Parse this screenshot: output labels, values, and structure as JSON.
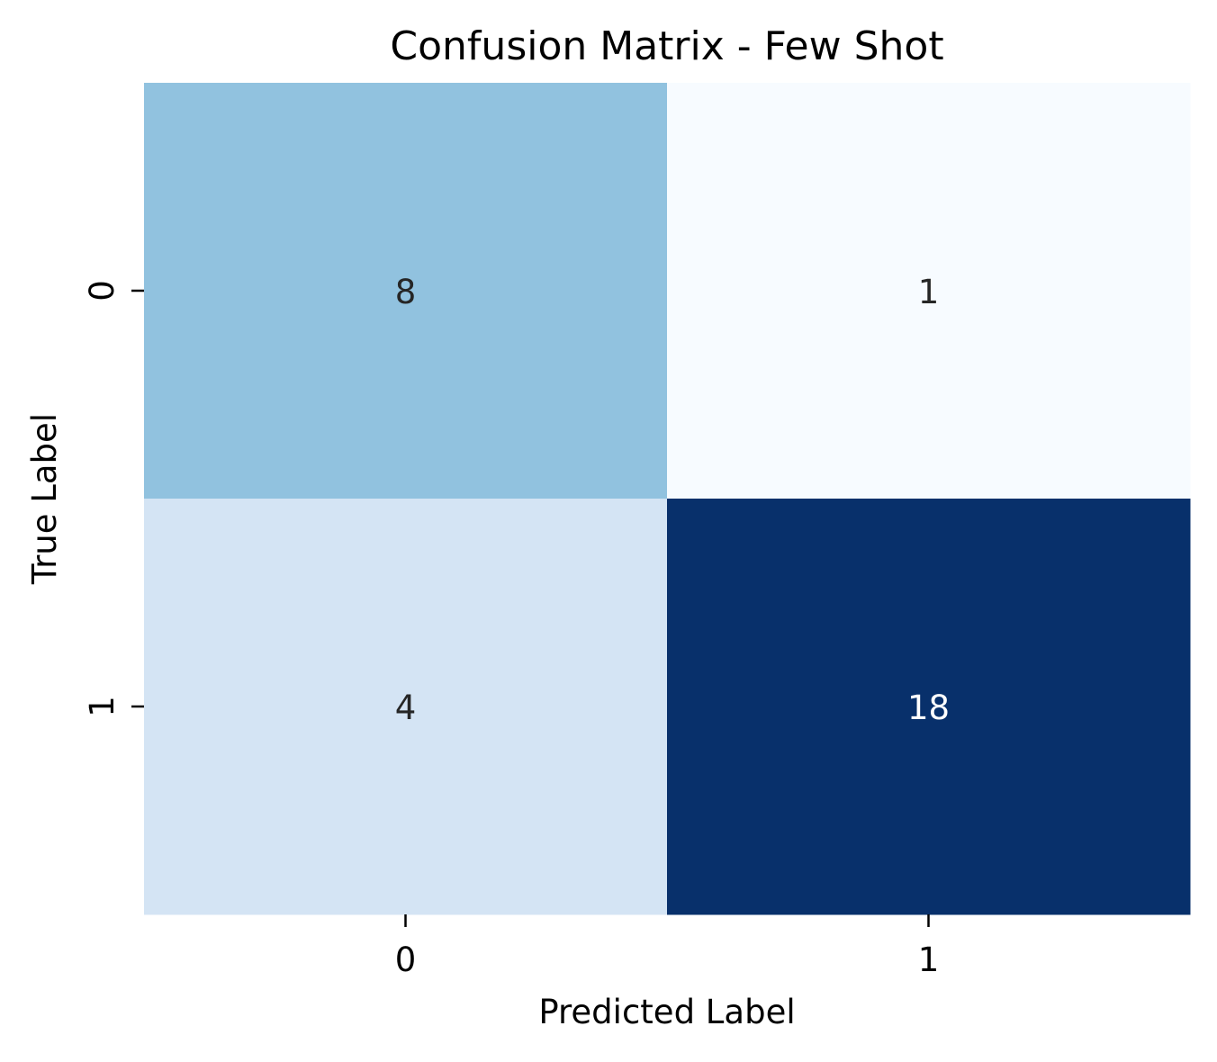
{
  "chart_data": {
    "type": "heatmap",
    "title": "Confusion Matrix - Few Shot",
    "xlabel": "Predicted Label",
    "ylabel": "True Label",
    "x_categories": [
      "0",
      "1"
    ],
    "y_categories": [
      "0",
      "1"
    ],
    "values": [
      [
        8,
        1
      ],
      [
        4,
        18
      ]
    ],
    "colormap": "Blues",
    "color_range": [
      1,
      18
    ],
    "colorbar": false,
    "grid": false,
    "cell_colors": [
      [
        "#91c2df",
        "#f7fbff"
      ],
      [
        "#d4e4f4",
        "#08306b"
      ]
    ],
    "annotation_colors": [
      [
        "#262626",
        "#262626"
      ],
      [
        "#262626",
        "#ffffff"
      ]
    ]
  }
}
